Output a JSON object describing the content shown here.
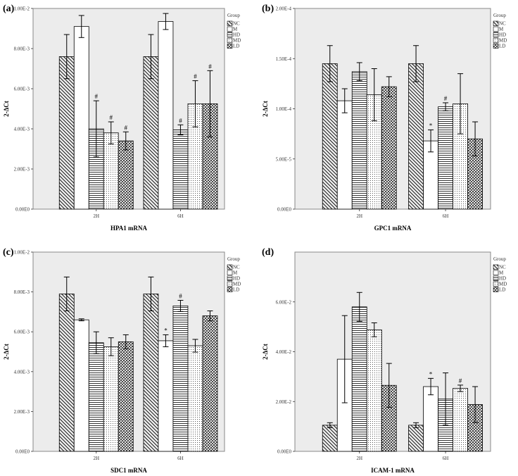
{
  "chart_data": [
    {
      "type": "bar",
      "panel_label": "(a)",
      "xlabel": "HPA1 mRNA",
      "ylabel": "2-ΔCt",
      "ylim": [
        0,
        0.01
      ],
      "yticks": [
        0,
        0.002,
        0.004,
        0.006,
        0.008,
        0.01
      ],
      "ytick_labels": [
        "0.00E0",
        "2.00E-3",
        "4.00E-3",
        "6.00E-3",
        "8.00E-3",
        "1.00E-2"
      ],
      "categories": [
        "2H",
        "6H"
      ],
      "legend_title": "Group",
      "series": [
        {
          "name": "NC",
          "values": [
            0.0076,
            0.0076
          ],
          "errors": [
            0.0011,
            0.0011
          ],
          "marks": [
            "",
            ""
          ]
        },
        {
          "name": "M",
          "values": [
            0.0091,
            0.00935
          ],
          "errors": [
            0.00055,
            0.0004
          ],
          "marks": [
            "",
            ""
          ]
        },
        {
          "name": "HD",
          "values": [
            0.004,
            0.00395
          ],
          "errors": [
            0.0014,
            0.00025
          ],
          "marks": [
            "#",
            "#"
          ]
        },
        {
          "name": "MD",
          "values": [
            0.0038,
            0.00525
          ],
          "errors": [
            0.00055,
            0.00115
          ],
          "marks": [
            "#",
            "#"
          ]
        },
        {
          "name": "LD",
          "values": [
            0.0034,
            0.00525
          ],
          "errors": [
            0.00045,
            0.00165
          ],
          "marks": [
            "#",
            "#"
          ]
        }
      ]
    },
    {
      "type": "bar",
      "panel_label": "(b)",
      "xlabel": "GPC1 mRNA",
      "ylabel": "2-ΔCt",
      "ylim": [
        0,
        0.0002
      ],
      "yticks": [
        0,
        5e-05,
        0.0001,
        0.00015,
        0.0002
      ],
      "ytick_labels": [
        "0.00E0",
        "5.00E-5",
        "1.00E-4",
        "1.50E-4",
        "2.00E-4"
      ],
      "categories": [
        "2H",
        "6H"
      ],
      "legend_title": "Group",
      "series": [
        {
          "name": "NC",
          "values": [
            0.000145,
            0.000145
          ],
          "errors": [
            1.8e-05,
            1.8e-05
          ],
          "marks": [
            "",
            ""
          ]
        },
        {
          "name": "M",
          "values": [
            0.000108,
            6.8e-05
          ],
          "errors": [
            1.2e-05,
            1.1e-05
          ],
          "marks": [
            "",
            "*"
          ]
        },
        {
          "name": "HD",
          "values": [
            0.000137,
            0.000102
          ],
          "errors": [
            9e-06,
            4e-06
          ],
          "marks": [
            "",
            "#"
          ]
        },
        {
          "name": "MD",
          "values": [
            0.000114,
            0.000105
          ],
          "errors": [
            2.6e-05,
            3e-05
          ],
          "marks": [
            "",
            ""
          ]
        },
        {
          "name": "LD",
          "values": [
            0.000122,
            7e-05
          ],
          "errors": [
            1e-05,
            1.7e-05
          ],
          "marks": [
            "",
            ""
          ]
        }
      ]
    },
    {
      "type": "bar",
      "panel_label": "(c)",
      "xlabel": "SDC1 mRNA",
      "ylabel": "2-ΔCt",
      "ylim": [
        0,
        0.01
      ],
      "yticks": [
        0,
        0.002,
        0.004,
        0.006,
        0.008,
        0.01
      ],
      "ytick_labels": [
        "0.00E0",
        "2.00E-3",
        "4.00E-3",
        "6.00E-3",
        "8.00E-3",
        "1.00E-2"
      ],
      "categories": [
        "2H",
        "6H"
      ],
      "legend_title": "Group",
      "series": [
        {
          "name": "NC",
          "values": [
            0.0079,
            0.0079
          ],
          "errors": [
            0.00085,
            0.00085
          ],
          "marks": [
            "",
            ""
          ]
        },
        {
          "name": "M",
          "values": [
            0.0066,
            0.00555
          ],
          "errors": [
            5e-05,
            0.0003
          ],
          "marks": [
            "",
            "*"
          ]
        },
        {
          "name": "HD",
          "values": [
            0.00545,
            0.0073
          ],
          "errors": [
            0.00055,
            0.00028
          ],
          "marks": [
            "",
            "#"
          ]
        },
        {
          "name": "MD",
          "values": [
            0.00525,
            0.0053
          ],
          "errors": [
            0.00045,
            0.00032
          ],
          "marks": [
            "",
            ""
          ]
        },
        {
          "name": "LD",
          "values": [
            0.0055,
            0.0068
          ],
          "errors": [
            0.00035,
            0.00025
          ],
          "marks": [
            "",
            ""
          ]
        }
      ]
    },
    {
      "type": "bar",
      "panel_label": "(d)",
      "xlabel": "ICAM-1 mRNA",
      "ylabel": "2-ΔCt",
      "ylim": [
        0,
        0.08
      ],
      "yticks": [
        0,
        0.02,
        0.04,
        0.06
      ],
      "ytick_labels": [
        "0.00E0",
        "2.00E-2",
        "4.00E-2",
        "6.00E-2"
      ],
      "categories": [
        "2H",
        "6H"
      ],
      "legend_title": "Group",
      "series": [
        {
          "name": "NC",
          "values": [
            0.0105,
            0.0105
          ],
          "errors": [
            0.001,
            0.001
          ],
          "marks": [
            "",
            ""
          ]
        },
        {
          "name": "M",
          "values": [
            0.037,
            0.026
          ],
          "errors": [
            0.0175,
            0.0033
          ],
          "marks": [
            "",
            "*"
          ]
        },
        {
          "name": "HD",
          "values": [
            0.058,
            0.021
          ],
          "errors": [
            0.0058,
            0.0105
          ],
          "marks": [
            "",
            ""
          ]
        },
        {
          "name": "MD",
          "values": [
            0.0488,
            0.0253
          ],
          "errors": [
            0.0028,
            0.0013
          ],
          "marks": [
            "",
            "#"
          ]
        },
        {
          "name": "LD",
          "values": [
            0.0265,
            0.0188
          ],
          "errors": [
            0.0088,
            0.0072
          ],
          "marks": [
            "",
            ""
          ]
        }
      ]
    }
  ]
}
